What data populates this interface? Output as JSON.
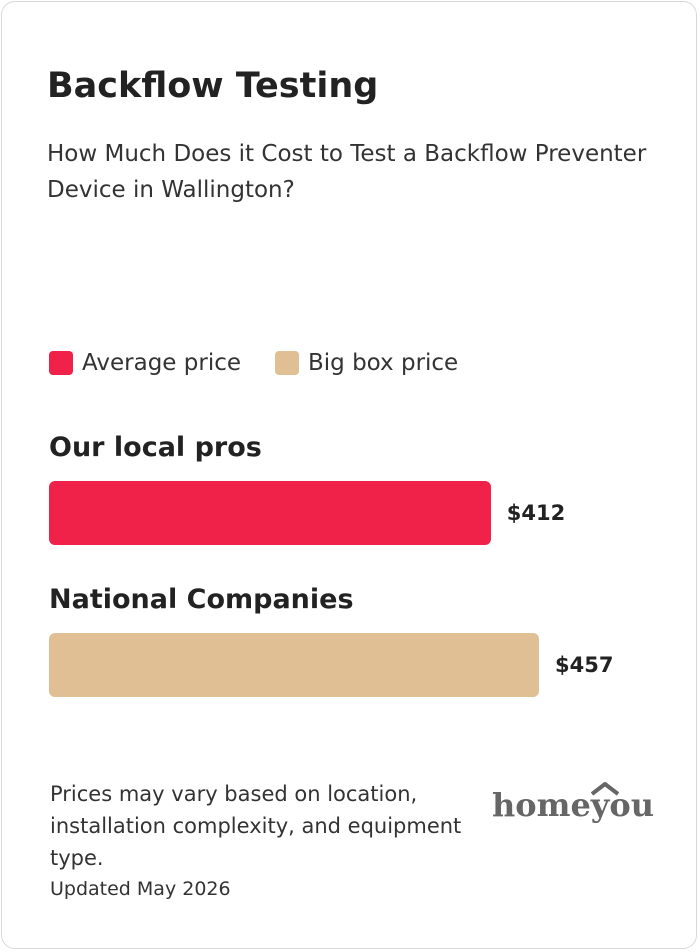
{
  "chart_data": {
    "type": "bar",
    "orientation": "horizontal",
    "title": "Backflow Testing",
    "subtitle": "How Much Does it Cost to Test a Backflow Preventer Device in Wallington?",
    "categories": [
      "Our local pros",
      "National Companies"
    ],
    "series": [
      {
        "name": "Average price",
        "color": "#f0224a",
        "values": [
          412,
          null
        ],
        "value_labels": [
          "$412",
          null
        ]
      },
      {
        "name": "Big box price",
        "color": "#dfbf93",
        "values": [
          null,
          457
        ],
        "value_labels": [
          null,
          "$457"
        ]
      }
    ]
  },
  "footer": {
    "note": "Prices may vary based on location, installation complexity, and equipment type.",
    "updated": "Updated May 2026",
    "logo": "homeyou"
  }
}
